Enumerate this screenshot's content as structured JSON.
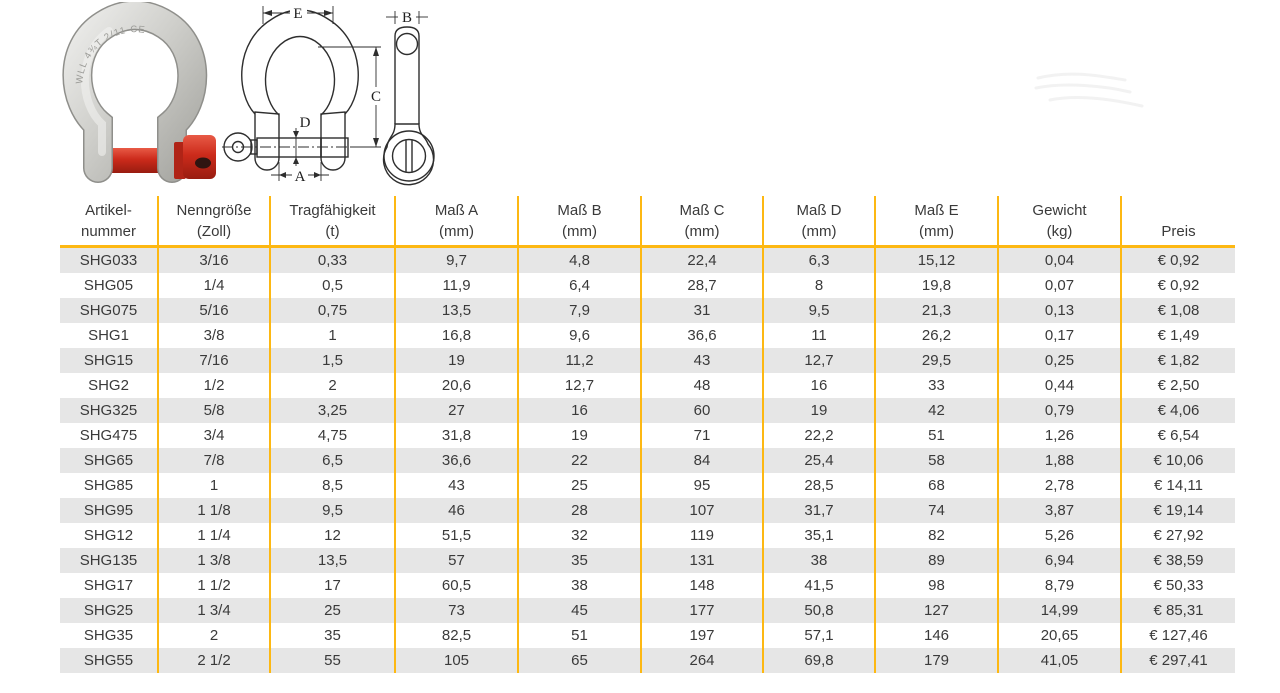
{
  "colors": {
    "grid": "#FDB813",
    "row_alt": "#E6E6E6",
    "text": "#3A3A3A",
    "pin_red": "#CC2B1B",
    "steel_light": "#E9E9E6",
    "steel_dark": "#A7A7A2"
  },
  "product": {
    "photo_marking": "WLL 4¾T 2/11  CE"
  },
  "diagram": {
    "dim_top_width": "E",
    "dim_height": "C",
    "dim_pin_diameter": "D",
    "dim_jaw_width": "A",
    "dim_pin_thickness": "B"
  },
  "table": {
    "headers": [
      {
        "lines": [
          "Artikel-",
          "nummer"
        ]
      },
      {
        "lines": [
          "Nenngröße",
          "(Zoll)"
        ]
      },
      {
        "lines": [
          "Tragfähigkeit",
          "(t)"
        ]
      },
      {
        "lines": [
          "Maß A",
          "(mm)"
        ]
      },
      {
        "lines": [
          "Maß B",
          "(mm)"
        ]
      },
      {
        "lines": [
          "Maß C",
          "(mm)"
        ]
      },
      {
        "lines": [
          "Maß D",
          "(mm)"
        ]
      },
      {
        "lines": [
          "Maß E",
          "(mm)"
        ]
      },
      {
        "lines": [
          "Gewicht",
          "(kg)"
        ]
      },
      {
        "lines": [
          "Preis"
        ]
      }
    ],
    "rows": [
      [
        "SHG033",
        "3/16",
        "0,33",
        "9,7",
        "4,8",
        "22,4",
        "6,3",
        "15,12",
        "0,04",
        "€ 0,92"
      ],
      [
        "SHG05",
        "1/4",
        "0,5",
        "11,9",
        "6,4",
        "28,7",
        "8",
        "19,8",
        "0,07",
        "€ 0,92"
      ],
      [
        "SHG075",
        "5/16",
        "0,75",
        "13,5",
        "7,9",
        "31",
        "9,5",
        "21,3",
        "0,13",
        "€ 1,08"
      ],
      [
        "SHG1",
        "3/8",
        "1",
        "16,8",
        "9,6",
        "36,6",
        "11",
        "26,2",
        "0,17",
        "€ 1,49"
      ],
      [
        "SHG15",
        "7/16",
        "1,5",
        "19",
        "11,2",
        "43",
        "12,7",
        "29,5",
        "0,25",
        "€ 1,82"
      ],
      [
        "SHG2",
        "1/2",
        "2",
        "20,6",
        "12,7",
        "48",
        "16",
        "33",
        "0,44",
        "€ 2,50"
      ],
      [
        "SHG325",
        "5/8",
        "3,25",
        "27",
        "16",
        "60",
        "19",
        "42",
        "0,79",
        "€ 4,06"
      ],
      [
        "SHG475",
        "3/4",
        "4,75",
        "31,8",
        "19",
        "71",
        "22,2",
        "51",
        "1,26",
        "€ 6,54"
      ],
      [
        "SHG65",
        "7/8",
        "6,5",
        "36,6",
        "22",
        "84",
        "25,4",
        "58",
        "1,88",
        "€ 10,06"
      ],
      [
        "SHG85",
        "1",
        "8,5",
        "43",
        "25",
        "95",
        "28,5",
        "68",
        "2,78",
        "€ 14,11"
      ],
      [
        "SHG95",
        "1 1/8",
        "9,5",
        "46",
        "28",
        "107",
        "31,7",
        "74",
        "3,87",
        "€ 19,14"
      ],
      [
        "SHG12",
        "1 1/4",
        "12",
        "51,5",
        "32",
        "119",
        "35,1",
        "82",
        "5,26",
        "€ 27,92"
      ],
      [
        "SHG135",
        "1 3/8",
        "13,5",
        "57",
        "35",
        "131",
        "38",
        "89",
        "6,94",
        "€ 38,59"
      ],
      [
        "SHG17",
        "1 1/2",
        "17",
        "60,5",
        "38",
        "148",
        "41,5",
        "98",
        "8,79",
        "€ 50,33"
      ],
      [
        "SHG25",
        "1 3/4",
        "25",
        "73",
        "45",
        "177",
        "50,8",
        "127",
        "14,99",
        "€ 85,31"
      ],
      [
        "SHG35",
        "2",
        "35",
        "82,5",
        "51",
        "197",
        "57,1",
        "146",
        "20,65",
        "€ 127,46"
      ],
      [
        "SHG55",
        "2 1/2",
        "55",
        "105",
        "65",
        "264",
        "69,8",
        "179",
        "41,05",
        "€ 297,41"
      ]
    ]
  }
}
